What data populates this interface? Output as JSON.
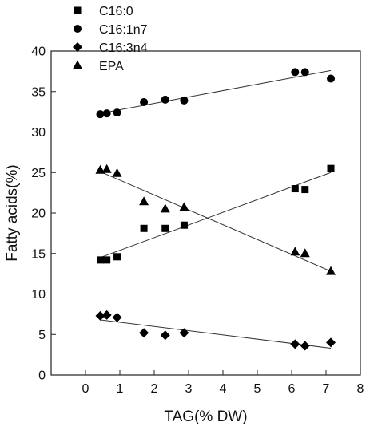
{
  "chart_data": {
    "type": "scatter",
    "title": "",
    "xlabel": "TAG(% DW)",
    "ylabel": "Fatty acids(%)",
    "xlim": [
      -1,
      8
    ],
    "ylim": [
      0,
      40
    ],
    "xticks": [
      0,
      1,
      2,
      3,
      4,
      5,
      6,
      7,
      8
    ],
    "yticks": [
      0,
      5,
      10,
      15,
      20,
      25,
      30,
      35,
      40
    ],
    "grid": false,
    "legend_position": "top-left",
    "series": [
      {
        "name": "C16:0",
        "marker": "square",
        "x": [
          0.43,
          0.62,
          0.92,
          1.7,
          2.32,
          2.87,
          6.1,
          6.39,
          7.14
        ],
        "y": [
          14.2,
          14.2,
          14.6,
          18.1,
          18.1,
          18.5,
          23.0,
          22.9,
          25.5
        ],
        "trend": {
          "x": [
            0.43,
            7.14
          ],
          "y": [
            14.5,
            25.0
          ]
        }
      },
      {
        "name": "C16:1n7",
        "marker": "circle",
        "x": [
          0.43,
          0.62,
          0.92,
          1.7,
          2.32,
          2.87,
          6.1,
          6.39,
          7.14
        ],
        "y": [
          32.2,
          32.3,
          32.4,
          33.7,
          34.0,
          33.9,
          37.4,
          37.4,
          36.6
        ],
        "trend": {
          "x": [
            0.43,
            7.14
          ],
          "y": [
            32.3,
            37.6
          ]
        }
      },
      {
        "name": "C16:3n4",
        "marker": "diamond",
        "x": [
          0.43,
          0.62,
          0.92,
          1.7,
          2.32,
          2.87,
          6.1,
          6.39,
          7.14
        ],
        "y": [
          7.3,
          7.4,
          7.1,
          5.2,
          4.9,
          5.2,
          3.8,
          3.6,
          4.0
        ],
        "trend": {
          "x": [
            0.43,
            7.14
          ],
          "y": [
            6.8,
            3.3
          ]
        }
      },
      {
        "name": "EPA",
        "marker": "triangle",
        "x": [
          0.43,
          0.62,
          0.92,
          1.7,
          2.32,
          2.87,
          6.1,
          6.39,
          7.14
        ],
        "y": [
          25.3,
          25.4,
          24.9,
          21.4,
          20.5,
          20.7,
          15.2,
          15.0,
          12.8
        ],
        "trend": {
          "x": [
            0.43,
            7.14
          ],
          "y": [
            25.1,
            12.8
          ]
        }
      }
    ]
  }
}
